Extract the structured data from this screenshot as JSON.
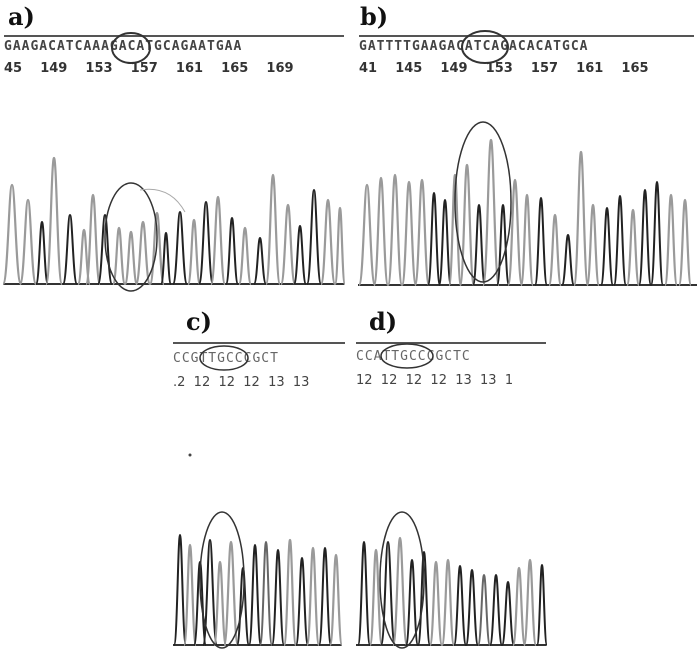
{
  "panels": [
    {
      "id": "a",
      "letter": "a)",
      "sequence": "GAAGACATCAAAGACATGCAGAATGAA",
      "positions": "45    149    153    157    161    165    169"
    },
    {
      "id": "b",
      "letter": "b)",
      "sequence": "GATTTTGAAGACATCAGACACATGCA",
      "positions": "41    145    149    153    157    161    165"
    },
    {
      "id": "c",
      "letter": "c)",
      "sequence": "CCGTTGCCCGCT",
      "positions": ".2  12  12  12  13  13"
    },
    {
      "id": "d",
      "letter": "d)",
      "sequence": "CCATTGCCCGCTC",
      "positions": "12  12  12  12  13  13  1"
    }
  ],
  "colors": {
    "dark_trace": "#222222",
    "light_trace": "#9a9a9a",
    "mid_trace": "#666666",
    "highlight_ring": "#333333"
  }
}
